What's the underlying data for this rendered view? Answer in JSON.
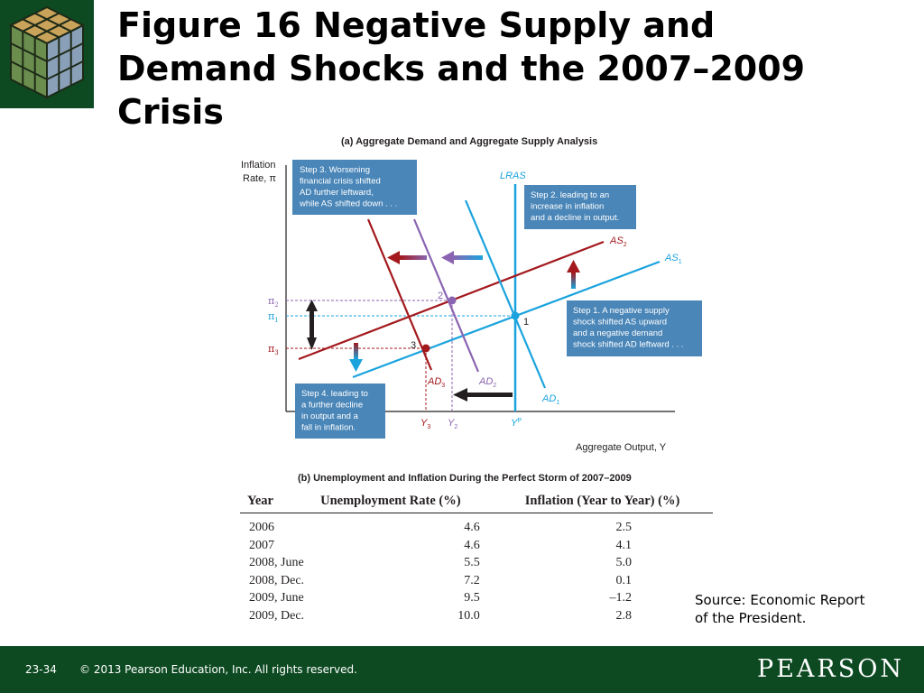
{
  "slide": {
    "title_lines": [
      "Figure 16  Negative Supply and",
      "Demand Shocks and the 2007–2009",
      "Crisis"
    ],
    "source_lines": [
      "Source: Economic Report",
      "of the President."
    ],
    "page_number": "23-34",
    "copyright": "© 2013 Pearson Education, Inc. All rights reserved.",
    "brand": "PEARSON",
    "logo_icon": "rubiks-cube-logo",
    "colors": {
      "footer": "#0d4a22",
      "blue_curve": "#1aa3dd",
      "red_curve": "#a3191d",
      "purple_curve": "#8a64b0",
      "callout_box": "#4a86b8"
    }
  },
  "diagram_a": {
    "title": "(a) Aggregate Demand and Aggregate Supply Analysis",
    "y_axis_label": [
      "Inflation",
      "Rate, π"
    ],
    "x_axis_label": "Aggregate Output, Y",
    "curves": {
      "lras": "LRAS",
      "as1": "AS",
      "as1_sub": "1",
      "as2": "AS",
      "as2_sub": "2",
      "ad1": "AD",
      "ad1_sub": "1",
      "ad2": "AD",
      "ad2_sub": "2",
      "ad3": "AD",
      "ad3_sub": "3"
    },
    "y_ticks": {
      "pi2": "π",
      "pi2_sub": "2",
      "pi1": "π",
      "pi1_sub": "1",
      "pi3": "π",
      "pi3_sub": "3"
    },
    "x_ticks": {
      "y3": "Y",
      "y3_sub": "3",
      "y2": "Y",
      "y2_sub": "2",
      "yp": "Y",
      "yp_sup": "P"
    },
    "points": {
      "p1": "1",
      "p2": "2",
      "p3": "3"
    },
    "callouts": {
      "step3": [
        "Step 3. Worsening",
        "financial crisis shifted",
        "AD further leftward,",
        "while AS shifted down . . ."
      ],
      "step2": [
        "Step 2. leading to an",
        "increase in inflation",
        "and a decline in output."
      ],
      "step1": [
        "Step 1. A negative supply",
        "shock shifted AS upward",
        "and a negative demand",
        "shock shifted AD leftward . . ."
      ],
      "step4": [
        "Step 4. leading to",
        "a further decline",
        "in output and a",
        "fall in inflation."
      ]
    }
  },
  "table_b": {
    "title": "(b) Unemployment and Inflation During the Perfect Storm of 2007–2009",
    "headers": [
      "Year",
      "Unemployment Rate (%)",
      "Inflation (Year to Year) (%)"
    ],
    "rows": [
      [
        "2006",
        "4.6",
        "2.5"
      ],
      [
        "2007",
        "4.6",
        "4.1"
      ],
      [
        "2008, June",
        "5.5",
        "5.0"
      ],
      [
        "2008, Dec.",
        "7.2",
        "0.1"
      ],
      [
        "2009, June",
        "9.5",
        "–1.2"
      ],
      [
        "2009, Dec.",
        "10.0",
        "2.8"
      ]
    ]
  }
}
